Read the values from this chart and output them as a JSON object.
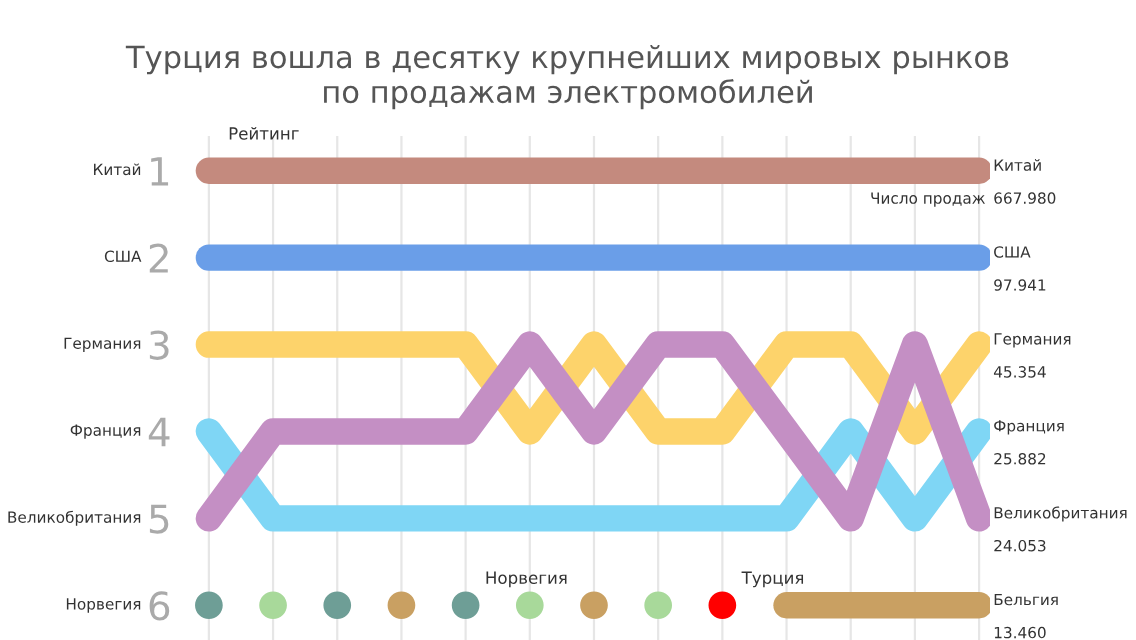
{
  "chart_data": {
    "type": "line",
    "title": "Турция вошла в десятку крупнейших мировых рынков\nпо продажам электромобилей",
    "ylabel": "Рейтинг",
    "categories": [
      null,
      null,
      null,
      null,
      null,
      null,
      null,
      null,
      null,
      null,
      null,
      null,
      null
    ],
    "ylim": [
      6.4,
      0.6
    ],
    "yticks": [
      1,
      2,
      3,
      4,
      5,
      6
    ],
    "grid": "x",
    "line_style": "solid",
    "annotations": [
      "Число продаж",
      "667.980",
      "97.941",
      "45.354",
      "25.882",
      "24.053",
      "13.460"
    ],
    "series": [
      {
        "name": "Китай",
        "color": "#c48a7e",
        "values": [
          1,
          1,
          1,
          1,
          1,
          1,
          1,
          1,
          1,
          1,
          1,
          1,
          1
        ]
      },
      {
        "name": "США",
        "color": "#6a9ee8",
        "values": [
          2,
          2,
          2,
          2,
          2,
          2,
          2,
          2,
          2,
          2,
          2,
          2,
          2
        ]
      },
      {
        "name": "Германия",
        "color": "#fdd36b",
        "values": [
          3,
          3,
          3,
          3,
          3,
          4,
          3,
          4,
          4,
          3,
          3,
          4,
          3
        ]
      },
      {
        "name": "Франция",
        "color": "#7fd6f5",
        "values": [
          4,
          5,
          5,
          5,
          5,
          5,
          5,
          5,
          5,
          5,
          4,
          5,
          4
        ]
      },
      {
        "name": "Великобритания",
        "color": "#c48fc4",
        "values": [
          5,
          4,
          4,
          4,
          4,
          3,
          4,
          3,
          3,
          4,
          5,
          3,
          5
        ]
      },
      {
        "name": "Норвегия",
        "color": "#6e9e96",
        "type": "scatter",
        "values": [
          6,
          null,
          6,
          null,
          6,
          null,
          null,
          null,
          null,
          null,
          null,
          null,
          null
        ]
      },
      {
        "color": "#a8d99a",
        "type": "scatter",
        "values": [
          null,
          6,
          null,
          null,
          null,
          6,
          null,
          6,
          null,
          null,
          null,
          null,
          null
        ]
      },
      {
        "name": "Турция",
        "color": "#ff0000",
        "type": "scatter",
        "values": [
          null,
          null,
          null,
          null,
          null,
          null,
          null,
          null,
          6,
          null,
          null,
          null,
          null
        ]
      },
      {
        "name": "Бельгия",
        "color": "#c9a062",
        "values": [
          null,
          null,
          null,
          6,
          null,
          null,
          6,
          null,
          null,
          6,
          6,
          6,
          6
        ]
      }
    ]
  }
}
